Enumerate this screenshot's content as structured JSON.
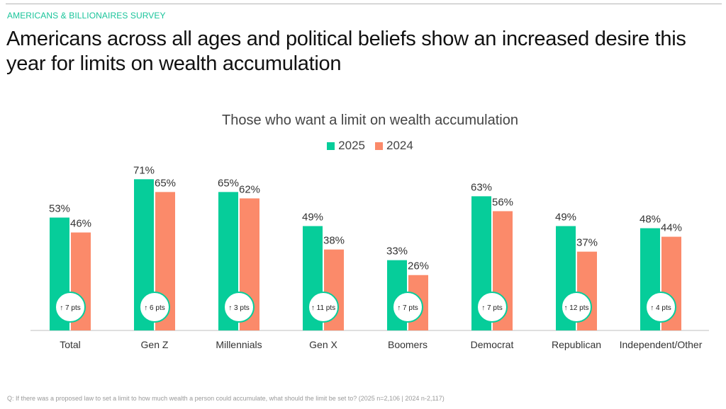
{
  "header": {
    "eyebrow": "AMERICANS & BILLIONAIRES SURVEY",
    "headline": "Americans across all ages and political beliefs show an increased desire this year for limits on wealth accumulation"
  },
  "colors": {
    "series_2025": "#06cd9a",
    "series_2024": "#fb8a6a",
    "axis": "#bfbfbf",
    "badge_ring": "#06cd9a"
  },
  "chart_data": {
    "type": "bar",
    "title": "Those who want a limit on wealth accumulation",
    "categories": [
      "Total",
      "Gen Z",
      "Millennials",
      "Gen X",
      "Boomers",
      "Democrat",
      "Republican",
      "Independent/Other"
    ],
    "series": [
      {
        "name": "2025",
        "values": [
          53,
          71,
          65,
          49,
          33,
          63,
          49,
          48
        ]
      },
      {
        "name": "2024",
        "values": [
          46,
          65,
          62,
          38,
          26,
          56,
          37,
          44
        ]
      }
    ],
    "value_suffix": "%",
    "change_labels": [
      "↑ 7 pts",
      "↑ 6 pts",
      "↑ 3 pts",
      "↑ 11 pts",
      "↑ 7 pts",
      "↑ 7 pts",
      "↑ 12 pts",
      "↑ 4 pts"
    ],
    "ylim": [
      0,
      100
    ],
    "legend_position": "top-center",
    "grid": false
  },
  "footnote": "Q: If there was a proposed law to set a limit to how much wealth a person could accumulate, what should the limit be set to? (2025 n=2,106 | 2024 n-2,117)"
}
